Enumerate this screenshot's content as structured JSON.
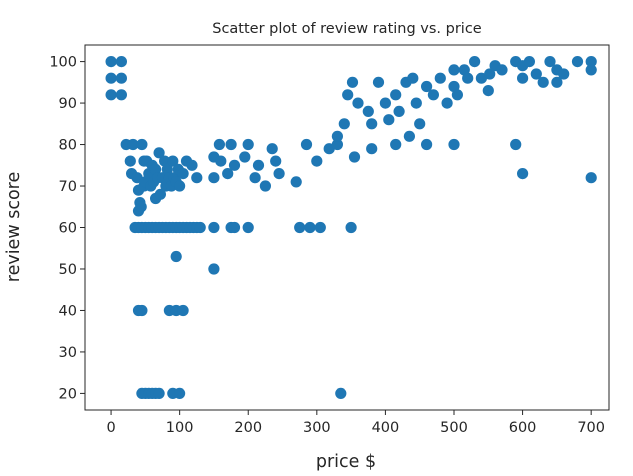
{
  "chart_data": {
    "type": "scatter",
    "title": "Scatter plot of review rating vs. price",
    "xlabel": "price $",
    "ylabel": "review score",
    "xlim": [
      -38,
      726
    ],
    "ylim": [
      16,
      104
    ],
    "xticks": [
      0,
      100,
      200,
      300,
      400,
      500,
      600,
      700
    ],
    "yticks": [
      20,
      30,
      40,
      50,
      60,
      70,
      80,
      90,
      100
    ],
    "grid": false,
    "color": "#1f77b4",
    "series": [
      {
        "points": [
          [
            0,
            100
          ],
          [
            0,
            96
          ],
          [
            0,
            92
          ],
          [
            15,
            100
          ],
          [
            15,
            96
          ],
          [
            15,
            92
          ],
          [
            22,
            80
          ],
          [
            28,
            76
          ],
          [
            30,
            73
          ],
          [
            32,
            80
          ],
          [
            35,
            60
          ],
          [
            38,
            72
          ],
          [
            40,
            69
          ],
          [
            40,
            64
          ],
          [
            42,
            66
          ],
          [
            44,
            65
          ],
          [
            45,
            80
          ],
          [
            48,
            76
          ],
          [
            48,
            70
          ],
          [
            50,
            71
          ],
          [
            52,
            76
          ],
          [
            55,
            73
          ],
          [
            58,
            70
          ],
          [
            60,
            75
          ],
          [
            62,
            71
          ],
          [
            65,
            74
          ],
          [
            65,
            67
          ],
          [
            68,
            72
          ],
          [
            70,
            78
          ],
          [
            72,
            68
          ],
          [
            75,
            72
          ],
          [
            78,
            76
          ],
          [
            80,
            70
          ],
          [
            82,
            74
          ],
          [
            85,
            72
          ],
          [
            88,
            70
          ],
          [
            90,
            76
          ],
          [
            92,
            72
          ],
          [
            95,
            71
          ],
          [
            98,
            74
          ],
          [
            100,
            70
          ],
          [
            105,
            73
          ],
          [
            110,
            76
          ],
          [
            118,
            75
          ],
          [
            125,
            72
          ],
          [
            150,
            72
          ],
          [
            150,
            77
          ],
          [
            158,
            80
          ],
          [
            160,
            76
          ],
          [
            170,
            73
          ],
          [
            175,
            80
          ],
          [
            180,
            75
          ],
          [
            195,
            77
          ],
          [
            200,
            80
          ],
          [
            210,
            72
          ],
          [
            215,
            75
          ],
          [
            225,
            70
          ],
          [
            235,
            79
          ],
          [
            240,
            76
          ],
          [
            245,
            73
          ],
          [
            270,
            71
          ],
          [
            285,
            80
          ],
          [
            300,
            76
          ],
          [
            318,
            79
          ],
          [
            330,
            80
          ],
          [
            355,
            77
          ],
          [
            380,
            79
          ],
          [
            415,
            80
          ],
          [
            460,
            80
          ],
          [
            500,
            80
          ],
          [
            590,
            80
          ],
          [
            600,
            73
          ],
          [
            700,
            72
          ],
          [
            40,
            60
          ],
          [
            45,
            60
          ],
          [
            50,
            60
          ],
          [
            55,
            60
          ],
          [
            60,
            60
          ],
          [
            65,
            60
          ],
          [
            70,
            60
          ],
          [
            75,
            60
          ],
          [
            80,
            60
          ],
          [
            85,
            60
          ],
          [
            90,
            60
          ],
          [
            95,
            60
          ],
          [
            100,
            60
          ],
          [
            105,
            60
          ],
          [
            110,
            60
          ],
          [
            115,
            60
          ],
          [
            120,
            60
          ],
          [
            125,
            60
          ],
          [
            130,
            60
          ],
          [
            150,
            60
          ],
          [
            175,
            60
          ],
          [
            180,
            60
          ],
          [
            200,
            60
          ],
          [
            275,
            60
          ],
          [
            290,
            60
          ],
          [
            305,
            60
          ],
          [
            350,
            60
          ],
          [
            95,
            53
          ],
          [
            150,
            50
          ],
          [
            40,
            40
          ],
          [
            45,
            40
          ],
          [
            85,
            40
          ],
          [
            95,
            40
          ],
          [
            105,
            40
          ],
          [
            45,
            20
          ],
          [
            50,
            20
          ],
          [
            55,
            20
          ],
          [
            60,
            20
          ],
          [
            65,
            20
          ],
          [
            70,
            20
          ],
          [
            90,
            20
          ],
          [
            100,
            20
          ],
          [
            335,
            20
          ],
          [
            330,
            82
          ],
          [
            340,
            85
          ],
          [
            345,
            92
          ],
          [
            352,
            95
          ],
          [
            360,
            90
          ],
          [
            375,
            88
          ],
          [
            380,
            85
          ],
          [
            390,
            95
          ],
          [
            400,
            90
          ],
          [
            405,
            86
          ],
          [
            415,
            92
          ],
          [
            420,
            88
          ],
          [
            430,
            95
          ],
          [
            435,
            82
          ],
          [
            440,
            96
          ],
          [
            445,
            90
          ],
          [
            450,
            85
          ],
          [
            460,
            94
          ],
          [
            470,
            92
          ],
          [
            480,
            96
          ],
          [
            490,
            90
          ],
          [
            500,
            98
          ],
          [
            500,
            94
          ],
          [
            505,
            92
          ],
          [
            515,
            98
          ],
          [
            520,
            96
          ],
          [
            530,
            100
          ],
          [
            540,
            96
          ],
          [
            550,
            93
          ],
          [
            552,
            97
          ],
          [
            560,
            99
          ],
          [
            570,
            98
          ],
          [
            590,
            100
          ],
          [
            600,
            96
          ],
          [
            600,
            99
          ],
          [
            610,
            100
          ],
          [
            620,
            97
          ],
          [
            630,
            95
          ],
          [
            640,
            100
          ],
          [
            650,
            95
          ],
          [
            650,
            98
          ],
          [
            660,
            97
          ],
          [
            680,
            100
          ],
          [
            700,
            100
          ],
          [
            700,
            98
          ]
        ]
      }
    ]
  }
}
